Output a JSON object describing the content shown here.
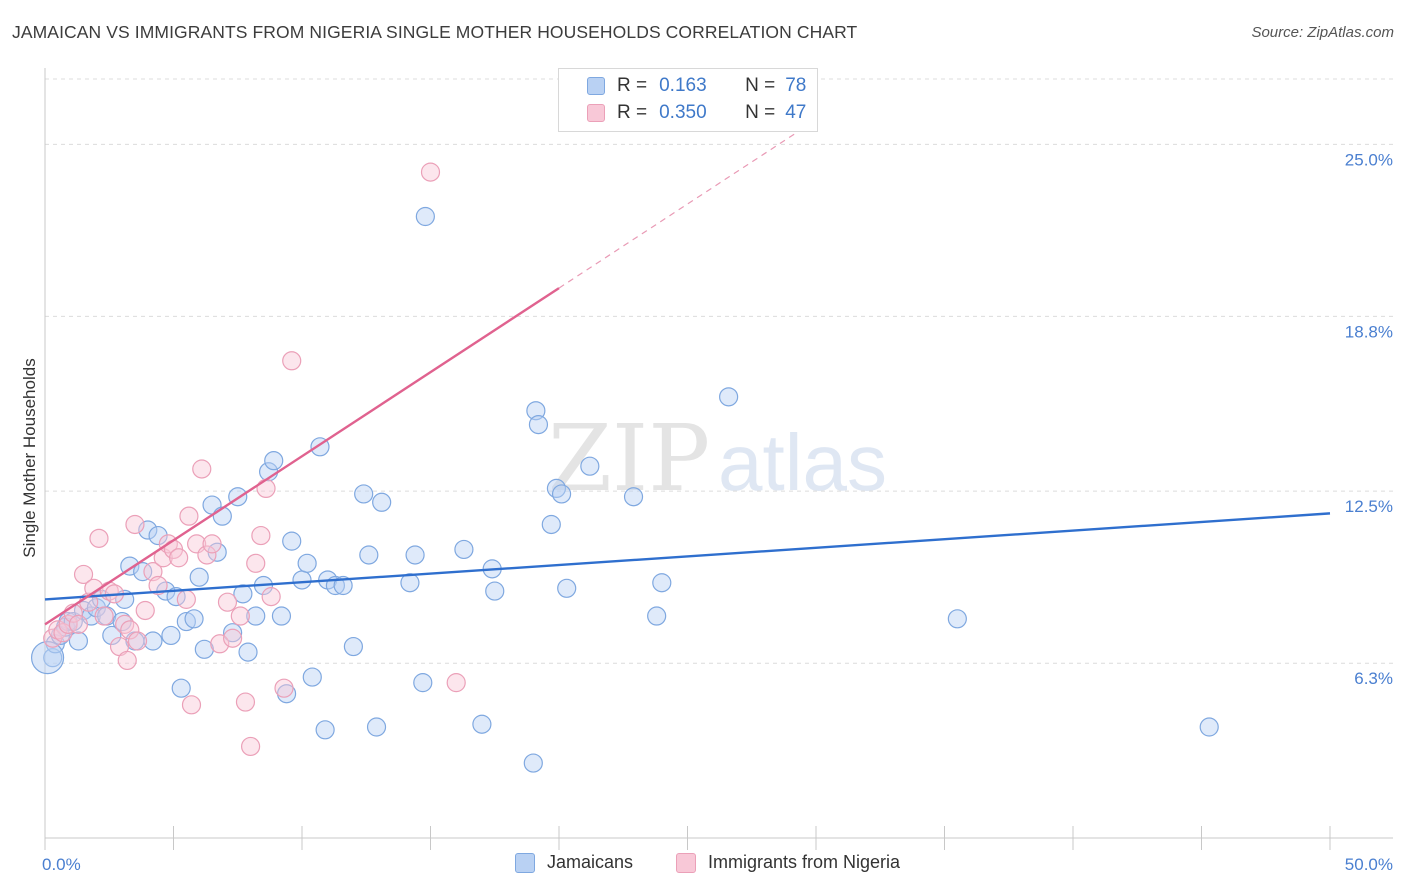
{
  "header": {
    "title": "JAMAICAN VS IMMIGRANTS FROM NIGERIA SINGLE MOTHER HOUSEHOLDS CORRELATION CHART",
    "source": "Source: ZipAtlas.com"
  },
  "watermark": {
    "zip": "ZIP",
    "atlas": "atlas"
  },
  "legend": {
    "r_label": "R =",
    "n_label": "N =",
    "items": [
      {
        "name": "Jamaicans",
        "r": "0.163",
        "n": "78",
        "color": "#4a86d8"
      },
      {
        "name": "Immigrants from Nigeria",
        "r": "0.350",
        "n": "47",
        "color": "#e57fa0"
      }
    ]
  },
  "chart_data": {
    "type": "scatter",
    "title": "JAMAICAN VS IMMIGRANTS FROM NIGERIA SINGLE MOTHER HOUSEHOLDS CORRELATION CHART",
    "xlabel": "",
    "ylabel": "Single Mother Households",
    "xlim": [
      0,
      50
    ],
    "ylim": [
      0,
      27.5
    ],
    "x_tick_labels": {
      "min": "0.0%",
      "max": "50.0%"
    },
    "y_ticks": [
      {
        "value": 6.3,
        "label": "6.3%"
      },
      {
        "value": 12.5,
        "label": "12.5%"
      },
      {
        "value": 18.8,
        "label": "18.8%"
      },
      {
        "value": 25.0,
        "label": "25.0%"
      }
    ],
    "series": [
      {
        "name": "Jamaicans",
        "color": "#4a86d8",
        "trend": {
          "x0": 0,
          "y0": 8.6,
          "x1": 50,
          "y1": 11.7,
          "dashed_extension": false
        },
        "points": [
          [
            0.3,
            6.5
          ],
          [
            0.4,
            7.0
          ],
          [
            0.6,
            7.3
          ],
          [
            0.8,
            7.6
          ],
          [
            0.9,
            7.8
          ],
          [
            1.1,
            7.8
          ],
          [
            1.3,
            7.1
          ],
          [
            1.5,
            8.2
          ],
          [
            1.8,
            8.0
          ],
          [
            2.0,
            8.3
          ],
          [
            2.2,
            8.6
          ],
          [
            2.4,
            8.0
          ],
          [
            2.6,
            7.3
          ],
          [
            3.0,
            7.8
          ],
          [
            3.1,
            8.6
          ],
          [
            3.3,
            9.8
          ],
          [
            3.5,
            7.1
          ],
          [
            3.8,
            9.6
          ],
          [
            4.0,
            11.1
          ],
          [
            4.2,
            7.1
          ],
          [
            4.4,
            10.9
          ],
          [
            4.7,
            8.9
          ],
          [
            4.9,
            7.3
          ],
          [
            5.1,
            8.7
          ],
          [
            5.3,
            5.4
          ],
          [
            5.5,
            7.8
          ],
          [
            5.8,
            7.9
          ],
          [
            6.0,
            9.4
          ],
          [
            6.2,
            6.8
          ],
          [
            6.5,
            12.0
          ],
          [
            6.7,
            10.3
          ],
          [
            6.9,
            11.6
          ],
          [
            7.3,
            7.4
          ],
          [
            7.5,
            12.3
          ],
          [
            7.7,
            8.8
          ],
          [
            7.9,
            6.7
          ],
          [
            8.2,
            8.0
          ],
          [
            8.5,
            9.1
          ],
          [
            8.7,
            13.2
          ],
          [
            8.9,
            13.6
          ],
          [
            9.2,
            8.0
          ],
          [
            9.4,
            5.2
          ],
          [
            9.6,
            10.7
          ],
          [
            10.0,
            9.3
          ],
          [
            10.2,
            9.9
          ],
          [
            10.4,
            5.8
          ],
          [
            10.7,
            14.1
          ],
          [
            10.9,
            3.9
          ],
          [
            11.0,
            9.3
          ],
          [
            11.3,
            9.1
          ],
          [
            11.6,
            9.1
          ],
          [
            12.0,
            6.9
          ],
          [
            12.4,
            12.4
          ],
          [
            12.6,
            10.2
          ],
          [
            12.9,
            4.0
          ],
          [
            13.1,
            12.1
          ],
          [
            14.2,
            9.2
          ],
          [
            14.4,
            10.2
          ],
          [
            14.7,
            5.6
          ],
          [
            14.8,
            22.4
          ],
          [
            16.3,
            10.4
          ],
          [
            17.0,
            4.1
          ],
          [
            17.4,
            9.7
          ],
          [
            17.5,
            8.9
          ],
          [
            19.0,
            2.7
          ],
          [
            19.1,
            15.4
          ],
          [
            19.2,
            14.9
          ],
          [
            19.7,
            11.3
          ],
          [
            19.9,
            12.6
          ],
          [
            20.1,
            12.4
          ],
          [
            20.3,
            9.0
          ],
          [
            21.2,
            13.4
          ],
          [
            22.9,
            12.3
          ],
          [
            23.8,
            8.0
          ],
          [
            24.0,
            9.2
          ],
          [
            26.6,
            15.9
          ],
          [
            35.5,
            7.9
          ],
          [
            45.3,
            4.0
          ]
        ]
      },
      {
        "name": "Immigrants from Nigeria",
        "color": "#e57fa0",
        "trend": {
          "x0": 0,
          "y0": 7.7,
          "x1": 50,
          "y1": 38.0,
          "solid_until_x": 20,
          "dashed_extension": true
        },
        "points": [
          [
            0.3,
            7.2
          ],
          [
            0.5,
            7.5
          ],
          [
            0.7,
            7.4
          ],
          [
            0.9,
            7.7
          ],
          [
            1.1,
            8.1
          ],
          [
            1.3,
            7.7
          ],
          [
            1.5,
            9.5
          ],
          [
            1.7,
            8.5
          ],
          [
            1.9,
            9.0
          ],
          [
            2.1,
            10.8
          ],
          [
            2.3,
            8.0
          ],
          [
            2.5,
            8.9
          ],
          [
            2.7,
            8.8
          ],
          [
            2.9,
            6.9
          ],
          [
            3.1,
            7.7
          ],
          [
            3.2,
            6.4
          ],
          [
            3.3,
            7.5
          ],
          [
            3.5,
            11.3
          ],
          [
            3.6,
            7.1
          ],
          [
            3.9,
            8.2
          ],
          [
            4.2,
            9.6
          ],
          [
            4.4,
            9.1
          ],
          [
            4.6,
            10.1
          ],
          [
            4.8,
            10.6
          ],
          [
            5.0,
            10.4
          ],
          [
            5.2,
            10.1
          ],
          [
            5.5,
            8.6
          ],
          [
            5.6,
            11.6
          ],
          [
            5.7,
            4.8
          ],
          [
            5.9,
            10.6
          ],
          [
            6.1,
            13.3
          ],
          [
            6.3,
            10.2
          ],
          [
            6.5,
            10.6
          ],
          [
            6.8,
            7.0
          ],
          [
            7.1,
            8.5
          ],
          [
            7.3,
            7.2
          ],
          [
            7.6,
            8.0
          ],
          [
            7.8,
            4.9
          ],
          [
            8.0,
            3.3
          ],
          [
            8.2,
            9.9
          ],
          [
            8.4,
            10.9
          ],
          [
            8.6,
            12.6
          ],
          [
            8.8,
            8.7
          ],
          [
            9.3,
            5.4
          ],
          [
            9.6,
            17.2
          ],
          [
            15.0,
            24.0
          ],
          [
            16.0,
            5.6
          ]
        ]
      }
    ]
  },
  "bottom_legend": [
    "Jamaicans",
    "Immigrants from Nigeria"
  ]
}
